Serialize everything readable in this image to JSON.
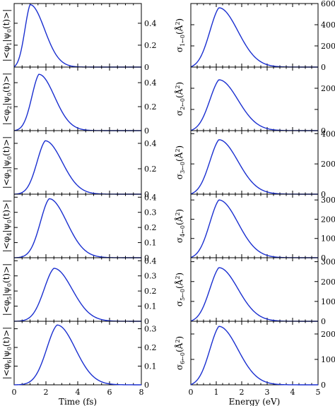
{
  "chart_data": [
    {
      "type": "line",
      "column": "left",
      "xlabel": "Time (fs)",
      "xlim": [
        0,
        8
      ],
      "xticks": [
        "0",
        "2",
        "4",
        "6",
        "8"
      ],
      "panels": [
        {
          "ylabel_main": "|<φ",
          "ylabel_sub": "1",
          "ylabel_end": "|ψ",
          "ylabel_sub2": "0",
          "ylabel_tail": "(t)>|",
          "ylim": [
            0,
            0.58
          ],
          "yticks": [
            0,
            0.2,
            0.4
          ],
          "ytick_labels": [
            "0",
            "0.2",
            "0.4"
          ],
          "peak_x": 1.0,
          "peak_y": 0.57,
          "width_l": 0.55,
          "width_r": 1.15
        },
        {
          "ylabel_main": "|<φ",
          "ylabel_sub": "2",
          "ylabel_end": "|ψ",
          "ylabel_sub2": "0",
          "ylabel_tail": "(t)>|",
          "ylim": [
            0,
            0.53
          ],
          "yticks": [
            0,
            0.2,
            0.4
          ],
          "ytick_labels": [
            "0",
            "0.2",
            "0.4"
          ],
          "peak_x": 1.55,
          "peak_y": 0.47,
          "width_l": 0.7,
          "width_r": 1.25
        },
        {
          "ylabel_main": "|<φ",
          "ylabel_sub": "3",
          "ylabel_end": "|ψ",
          "ylabel_sub2": "0",
          "ylabel_tail": "(t)>|",
          "ylim": [
            0,
            0.5
          ],
          "yticks": [
            0,
            0.2,
            0.4
          ],
          "ytick_labels": [
            "0",
            "0.2",
            "0.4"
          ],
          "peak_x": 1.95,
          "peak_y": 0.42,
          "width_l": 0.8,
          "width_r": 1.35
        },
        {
          "ylabel_main": "|<φ",
          "ylabel_sub": "4",
          "ylabel_end": "|ψ",
          "ylabel_sub2": "0",
          "ylabel_tail": "(t)>|",
          "ylim": [
            0,
            0.42
          ],
          "yticks": [
            0,
            0.1,
            0.2,
            0.3,
            0.4
          ],
          "ytick_labels": [
            "0",
            "0.1",
            "0.2",
            "0.3",
            "0.4"
          ],
          "peak_x": 2.2,
          "peak_y": 0.39,
          "width_l": 0.85,
          "width_r": 1.4
        },
        {
          "ylabel_main": "|<φ",
          "ylabel_sub": "5",
          "ylabel_end": "|ψ",
          "ylabel_sub2": "0",
          "ylabel_tail": "(t)>|",
          "ylim": [
            0,
            0.42
          ],
          "yticks": [
            0,
            0.1,
            0.2,
            0.3,
            0.4
          ],
          "ytick_labels": [
            "0",
            "0.1",
            "0.2",
            "0.3",
            "0.4"
          ],
          "peak_x": 2.5,
          "peak_y": 0.35,
          "width_l": 0.95,
          "width_r": 1.45
        },
        {
          "ylabel_main": "|<φ",
          "ylabel_sub": "6",
          "ylabel_end": "|ψ",
          "ylabel_sub2": "0",
          "ylabel_tail": "(t)>|",
          "ylim": [
            0,
            0.34
          ],
          "yticks": [
            0,
            0.1,
            0.2,
            0.3
          ],
          "ytick_labels": [
            "0",
            "0.1",
            "0.2",
            "0.3"
          ],
          "peak_x": 2.7,
          "peak_y": 0.32,
          "width_l": 1.0,
          "width_r": 1.45
        }
      ]
    },
    {
      "type": "line",
      "column": "right",
      "xlabel": "Energy (eV)",
      "xlim": [
        0,
        5
      ],
      "xticks": [
        "0",
        "1",
        "2",
        "3",
        "4",
        "5"
      ],
      "panels": [
        {
          "ylabel_main": "σ",
          "ylabel_sub": "1←0",
          "ylabel_tail": "(Å",
          "ylabel_sup": "2",
          "ylabel_close": ")",
          "ylim": [
            0,
            600
          ],
          "yticks": [
            0,
            200,
            400,
            600
          ],
          "ytick_labels": [
            "0",
            "200",
            "400",
            "600"
          ],
          "peak_x": 1.1,
          "peak_y": 560,
          "width_l": 0.6,
          "width_r": 0.95
        },
        {
          "ylabel_main": "σ",
          "ylabel_sub": "2←0",
          "ylabel_tail": "(Å",
          "ylabel_sup": "2",
          "ylabel_close": ")",
          "ylim": [
            0,
            300
          ],
          "yticks": [
            0,
            100,
            200
          ],
          "ytick_labels": [
            "0",
            "",
            "200"
          ],
          "peak_x": 1.1,
          "peak_y": 240,
          "width_l": 0.6,
          "width_r": 0.95
        },
        {
          "ylabel_main": "σ",
          "ylabel_sub": "3←0",
          "ylabel_tail": "(Å",
          "ylabel_sup": "2",
          "ylabel_close": ")",
          "ylim": [
            0,
            420
          ],
          "yticks": [
            0,
            200,
            400
          ],
          "ytick_labels": [
            "0",
            "200",
            "400"
          ],
          "peak_x": 1.1,
          "peak_y": 360,
          "width_l": 0.6,
          "width_r": 0.95
        },
        {
          "ylabel_main": "σ",
          "ylabel_sub": "4←0",
          "ylabel_tail": "(Å",
          "ylabel_sup": "2",
          "ylabel_close": ")",
          "ylim": [
            0,
            330
          ],
          "yticks": [
            0,
            100,
            200,
            300
          ],
          "ytick_labels": [
            "0",
            "100",
            "200",
            "300"
          ],
          "peak_x": 1.1,
          "peak_y": 300,
          "width_l": 0.6,
          "width_r": 0.95
        },
        {
          "ylabel_main": "σ",
          "ylabel_sub": "5←0",
          "ylabel_tail": "(Å",
          "ylabel_sup": "2",
          "ylabel_close": ")",
          "ylim": [
            0,
            320
          ],
          "yticks": [
            0,
            100,
            200,
            300
          ],
          "ytick_labels": [
            "0",
            "100",
            "200",
            "300"
          ],
          "peak_x": 1.1,
          "peak_y": 270,
          "width_l": 0.6,
          "width_r": 0.95
        },
        {
          "ylabel_main": "σ",
          "ylabel_sub": "6←0",
          "ylabel_tail": "(Å",
          "ylabel_sup": "2",
          "ylabel_close": ")",
          "ylim": [
            0,
            250
          ],
          "yticks": [
            0,
            100,
            200
          ],
          "ytick_labels": [
            "0",
            "100",
            "200"
          ],
          "peak_x": 1.1,
          "peak_y": 230,
          "width_l": 0.6,
          "width_r": 0.95
        }
      ]
    }
  ],
  "colors": {
    "curve": "#1a2fd0",
    "axes": "#000000"
  }
}
